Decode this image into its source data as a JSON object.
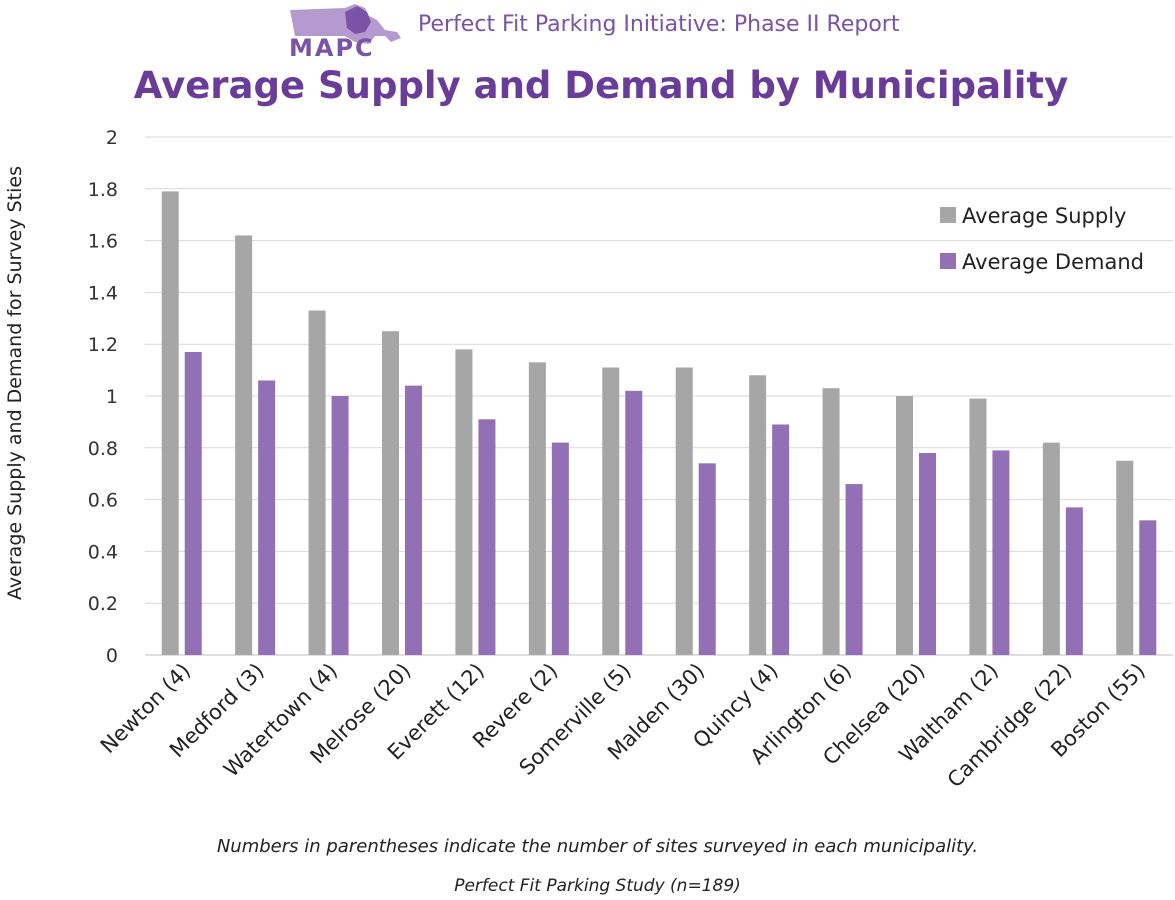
{
  "header": {
    "logo_text": "MAPC",
    "report_title": "Perfect Fit Parking Initiative: Phase II Report"
  },
  "footnotes": {
    "note": "Numbers in parentheses indicate the  number of sites surveyed in each municipality.",
    "source": "Perfect Fit Parking Study (n=189)"
  },
  "colors": {
    "supply": "#A6A6A6",
    "demand": "#9370B6",
    "title": "#6A3C99",
    "gridline": "#D9D9D9"
  },
  "chart_data": {
    "type": "bar",
    "title": "Average Supply and Demand by Municipality",
    "xlabel": "",
    "ylabel": "Average Supply and Demand for Survey Sties",
    "ylim": [
      0,
      2
    ],
    "yticks": [
      "0",
      "0.2",
      "0.4",
      "0.6",
      "0.8",
      "1",
      "1.2",
      "1.4",
      "1.6",
      "1.8",
      "2"
    ],
    "grid": true,
    "legend_position": "top-right",
    "categories": [
      "Newton (4)",
      "Medford (3)",
      "Watertown (4)",
      "Melrose (20)",
      "Everett (12)",
      "Revere (2)",
      "Somerville (5)",
      "Malden (30)",
      "Quincy (4)",
      "Arlington (6)",
      "Chelsea (20)",
      "Waltham (2)",
      "Cambridge (22)",
      "Boston (55)"
    ],
    "series": [
      {
        "name": "Average Supply",
        "color": "#A6A6A6",
        "values": [
          1.79,
          1.62,
          1.33,
          1.25,
          1.18,
          1.13,
          1.11,
          1.11,
          1.08,
          1.03,
          1.0,
          0.99,
          0.82,
          0.75
        ]
      },
      {
        "name": "Average Demand",
        "color": "#9370B6",
        "values": [
          1.17,
          1.06,
          1.0,
          1.04,
          0.91,
          0.82,
          1.02,
          0.74,
          0.89,
          0.66,
          0.78,
          0.79,
          0.57,
          0.52
        ]
      }
    ]
  }
}
